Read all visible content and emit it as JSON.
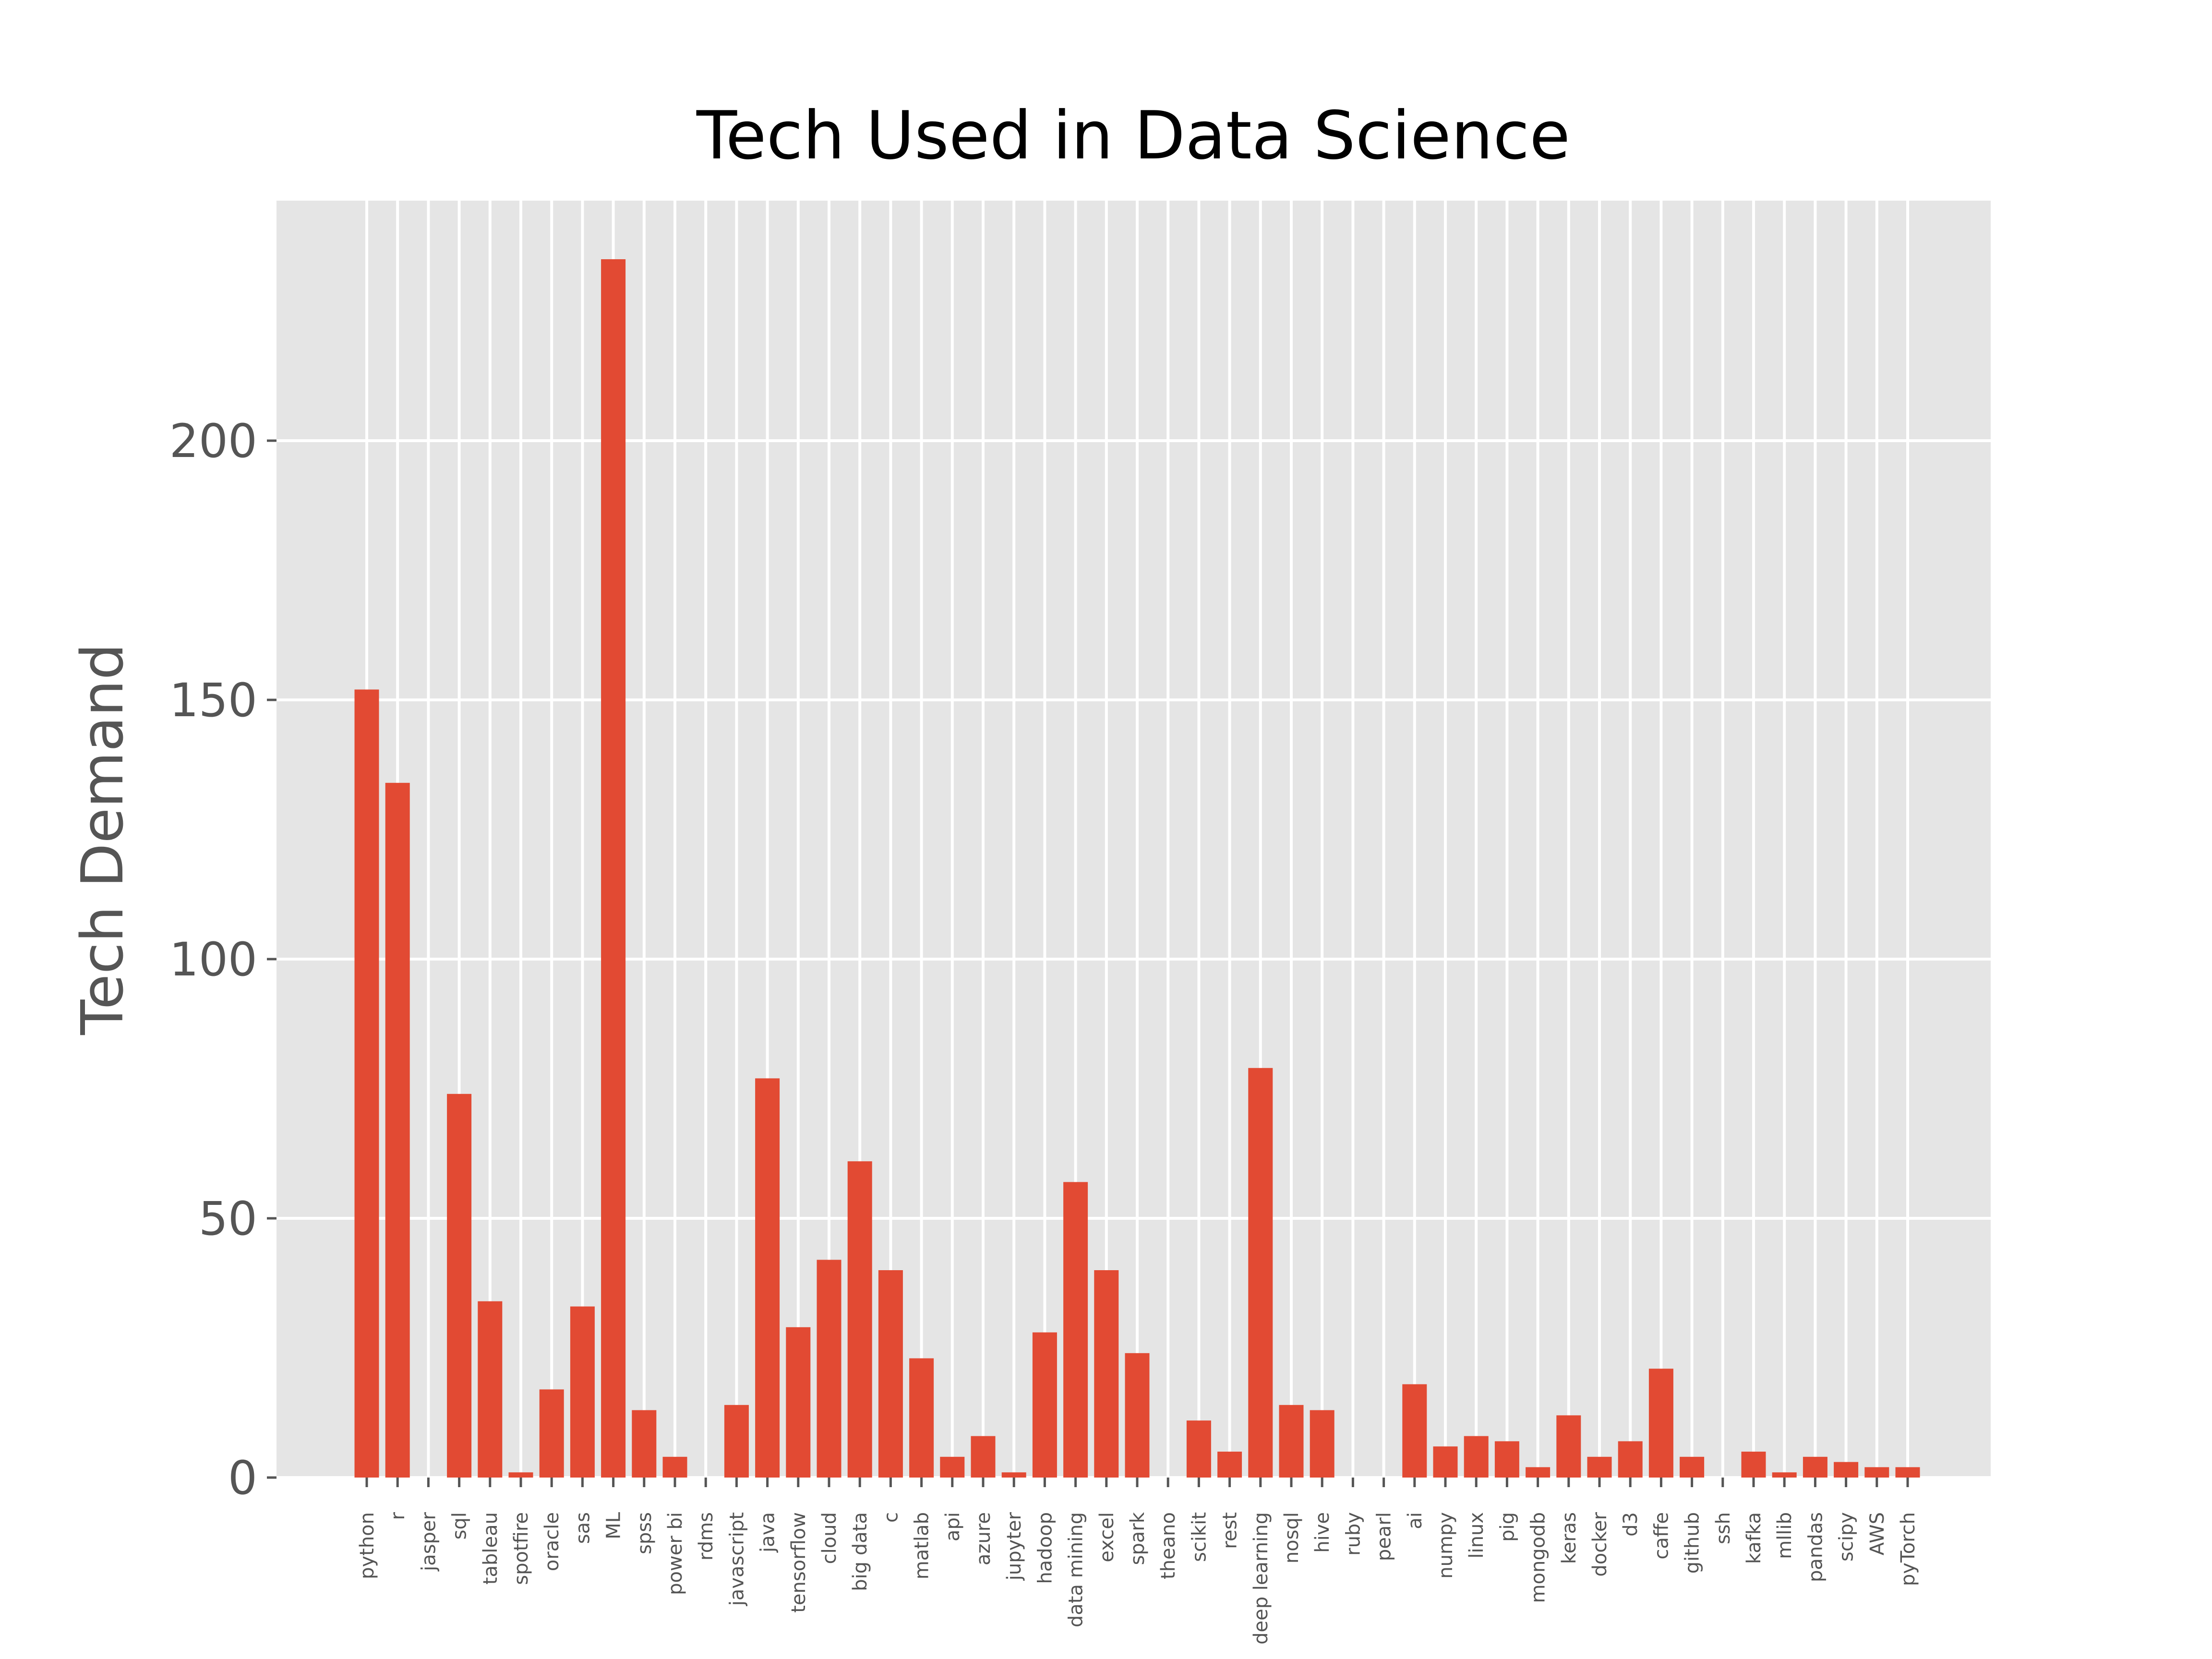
{
  "chart_data": {
    "type": "bar",
    "title": "Tech Used in Data Science",
    "xlabel": "",
    "ylabel": "Tech Demand",
    "categories": [
      "python",
      "r",
      "jasper",
      "sql",
      "tableau",
      "spotfire",
      "oracle",
      "sas",
      "ML",
      "spss",
      "power bi",
      "rdms",
      "javascript",
      "java",
      "tensorflow",
      "cloud",
      "big data",
      "c",
      "matlab",
      "api",
      "azure",
      "jupyter",
      "hadoop",
      "data mining",
      "excel",
      "spark",
      "theano",
      "scikit",
      "rest",
      "deep learning",
      "nosql",
      "hive",
      "ruby",
      "pearl",
      "ai",
      "numpy",
      "linux",
      "pig",
      "mongodb",
      "keras",
      "docker",
      "d3",
      "caffe",
      "github",
      "ssh",
      "kafka",
      "mllib",
      "pandas",
      "scipy",
      "AWS",
      "pyTorch"
    ],
    "values": [
      152,
      134,
      0,
      74,
      34,
      1,
      17,
      33,
      235,
      13,
      4,
      0,
      14,
      77,
      29,
      42,
      61,
      40,
      23,
      4,
      8,
      1,
      28,
      57,
      40,
      24,
      0,
      11,
      5,
      79,
      14,
      13,
      0,
      0,
      18,
      6,
      8,
      7,
      2,
      12,
      4,
      7,
      21,
      4,
      0,
      5,
      1,
      4,
      3,
      2,
      2
    ],
    "ylim": [
      0,
      245
    ],
    "yticks": [
      0,
      50,
      100,
      150,
      200
    ],
    "grid": true,
    "colors": {
      "bar": "#E24A33",
      "plot_background": "#E5E5E5",
      "grid": "#FFFFFF",
      "tick_text": "#555555",
      "title_text": "#000000"
    }
  }
}
